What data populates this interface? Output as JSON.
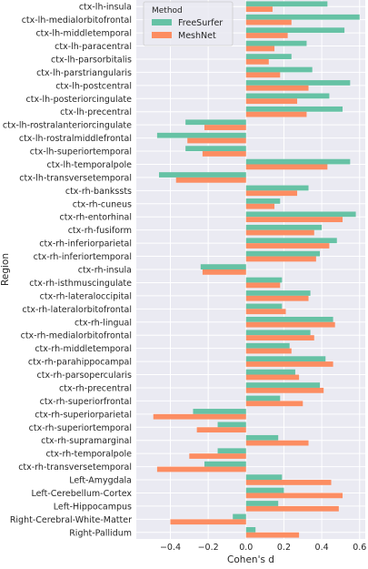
{
  "chart_data": {
    "type": "bar",
    "orientation": "horizontal",
    "xlabel": "Cohen's d",
    "ylabel": "Region",
    "xlim": [
      -0.58,
      0.63
    ],
    "xticks": [
      -0.4,
      -0.2,
      0.0,
      0.2,
      0.4,
      0.6
    ],
    "xtick_labels": [
      "−0.4",
      "−0.2",
      "0.0",
      "0.2",
      "0.4",
      "0.6"
    ],
    "grid": true,
    "legend": {
      "title": "Method",
      "placement": "top-left of plot"
    },
    "categories": [
      "ctx-lh-insula",
      "ctx-lh-medialorbitofrontal",
      "ctx-lh-middletemporal",
      "ctx-lh-paracentral",
      "ctx-lh-parsorbitalis",
      "ctx-lh-parstriangularis",
      "ctx-lh-postcentral",
      "ctx-lh-posteriorcingulate",
      "ctx-lh-precentral",
      "ctx-lh-rostralanteriorcingulate",
      "ctx-lh-rostralmiddlefrontal",
      "ctx-lh-superiortemporal",
      "ctx-lh-temporalpole",
      "ctx-lh-transversetemporal",
      "ctx-rh-bankssts",
      "ctx-rh-cuneus",
      "ctx-rh-entorhinal",
      "ctx-rh-fusiform",
      "ctx-rh-inferiorparietal",
      "ctx-rh-inferiortemporal",
      "ctx-rh-insula",
      "ctx-rh-isthmuscingulate",
      "ctx-rh-lateraloccipital",
      "ctx-rh-lateralorbitofrontal",
      "ctx-rh-lingual",
      "ctx-rh-medialorbitofrontal",
      "ctx-rh-middletemporal",
      "ctx-rh-parahippocampal",
      "ctx-rh-parsopercularis",
      "ctx-rh-precentral",
      "ctx-rh-superiorfrontal",
      "ctx-rh-superiorparietal",
      "ctx-rh-superiortemporal",
      "ctx-rh-supramarginal",
      "ctx-rh-temporalpole",
      "ctx-rh-transversetemporal",
      "Left-Amygdala",
      "Left-Cerebellum-Cortex",
      "Left-Hippocampus",
      "Right-Cerebral-White-Matter",
      "Right-Pallidum"
    ],
    "series": [
      {
        "name": "FreeSurfer",
        "color": "#66c2a5",
        "values": [
          0.43,
          0.6,
          0.52,
          0.32,
          0.24,
          0.35,
          0.55,
          0.44,
          0.51,
          -0.32,
          -0.47,
          -0.32,
          0.55,
          -0.46,
          0.33,
          0.18,
          0.58,
          0.4,
          0.48,
          0.39,
          -0.24,
          0.19,
          0.34,
          0.19,
          0.46,
          0.34,
          0.23,
          0.42,
          0.26,
          0.39,
          0.18,
          -0.28,
          -0.15,
          0.17,
          -0.15,
          -0.22,
          0.19,
          0.2,
          0.17,
          -0.07,
          0.05
        ]
      },
      {
        "name": "MeshNet",
        "color": "#fc8d62",
        "values": [
          0.14,
          0.24,
          0.22,
          0.15,
          0.12,
          0.18,
          0.33,
          0.27,
          0.32,
          -0.22,
          -0.31,
          -0.23,
          0.43,
          -0.37,
          0.27,
          0.15,
          0.51,
          0.36,
          0.44,
          0.37,
          -0.23,
          0.18,
          0.33,
          0.21,
          0.47,
          0.36,
          0.24,
          0.46,
          0.28,
          0.41,
          0.3,
          -0.49,
          -0.26,
          0.33,
          -0.3,
          -0.47,
          0.45,
          0.51,
          0.49,
          -0.4,
          0.28
        ]
      }
    ]
  }
}
